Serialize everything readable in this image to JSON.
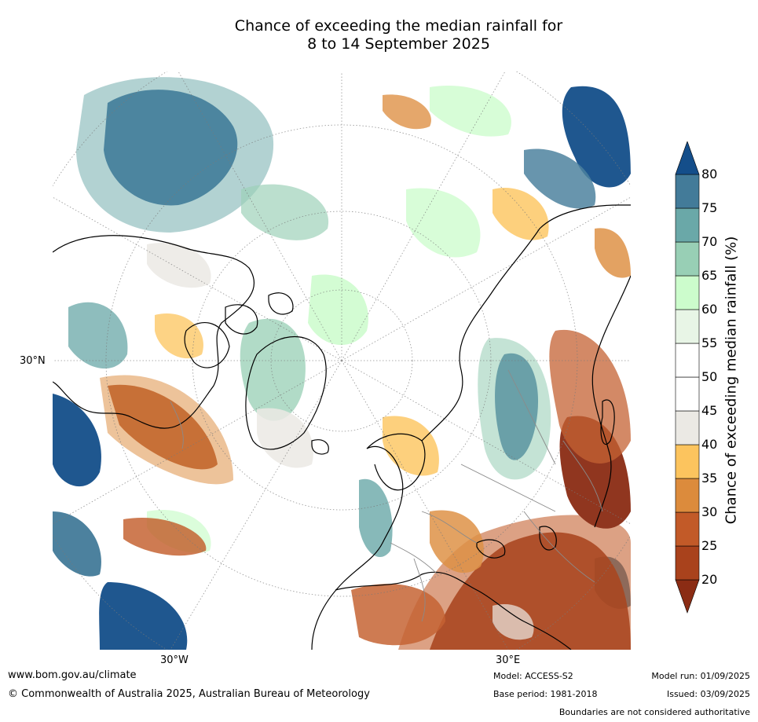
{
  "title": {
    "line1": "Chance of exceeding the median rainfall for",
    "line2": "8 to 14 September 2025"
  },
  "map": {
    "projection": "north-polar-stereographic",
    "lat_label": "30°N",
    "lon_labels": [
      "30°W",
      "30°E"
    ]
  },
  "colorbar": {
    "title": "Chance of exceeding median rainfall (%)",
    "ticks": [
      20,
      25,
      30,
      35,
      40,
      45,
      50,
      55,
      60,
      65,
      70,
      75,
      80
    ],
    "bins": [
      {
        "range": [
          null,
          20
        ],
        "color": "#8b2c14"
      },
      {
        "range": [
          20,
          25
        ],
        "color": "#a9421c"
      },
      {
        "range": [
          25,
          30
        ],
        "color": "#c25a28"
      },
      {
        "range": [
          30,
          35
        ],
        "color": "#dc8b3c"
      },
      {
        "range": [
          35,
          40
        ],
        "color": "#fcc45e"
      },
      {
        "range": [
          40,
          45
        ],
        "color": "#ebe9e4"
      },
      {
        "range": [
          45,
          50
        ],
        "color": "#ffffff"
      },
      {
        "range": [
          50,
          55
        ],
        "color": "#ffffff"
      },
      {
        "range": [
          55,
          60
        ],
        "color": "#e8f5e6"
      },
      {
        "range": [
          60,
          65
        ],
        "color": "#ccfccc"
      },
      {
        "range": [
          65,
          70
        ],
        "color": "#98cfb5"
      },
      {
        "range": [
          70,
          75
        ],
        "color": "#6aa8a8"
      },
      {
        "range": [
          75,
          80
        ],
        "color": "#437b99"
      },
      {
        "range": [
          80,
          null
        ],
        "color": "#144e8a"
      }
    ]
  },
  "footer": {
    "url": "www.bom.gov.au/climate",
    "copyright": "© Commonwealth of Australia 2025, Australian Bureau of Meteorology",
    "model": "Model: ACCESS-S2",
    "base_period": "Base period: 1981-2018",
    "model_run": "Model run: 01/09/2025",
    "issued": "Issued: 03/09/2025",
    "boundaries": "Boundaries are not considered authoritative"
  }
}
